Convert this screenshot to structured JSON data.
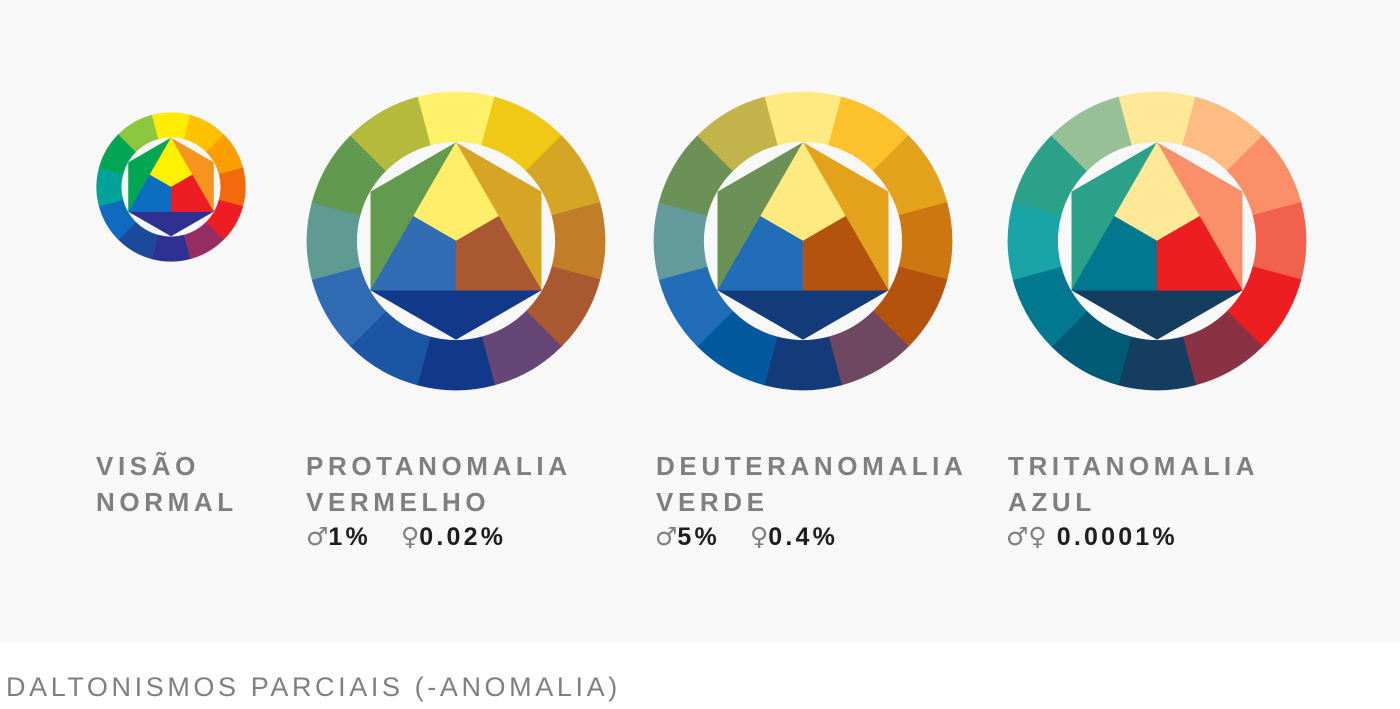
{
  "footer": {
    "title": "DALTONISMOS PARCIAIS (-ANOMALIA)"
  },
  "wheels": [
    {
      "id": "normal",
      "label_line1": "VISÃO",
      "label_line2": "NORMAL",
      "ring_colors": [
        "#ffec00",
        "#fec200",
        "#fb9f00",
        "#f26a0c",
        "#ee1c23",
        "#952d63",
        "#2e3192",
        "#1b4a9c",
        "#0d6bc0",
        "#00a398",
        "#00a651",
        "#8dc63f"
      ],
      "inner": {
        "top": "#fff100",
        "right": "#ee1c23",
        "left": "#0b6ec1",
        "outer_left": "#00a651",
        "outer_right": "#f7941d",
        "outer_bottom": "#2e3192"
      }
    },
    {
      "id": "protanomalia",
      "label_line1": "PROTANOMALIA",
      "label_line2": "VERMELHO",
      "male_symbol": "♂",
      "male_pct": "1%",
      "female_symbol": "♀",
      "female_pct": "0.02%",
      "ring_colors": [
        "#fff06a",
        "#f0c816",
        "#d5a526",
        "#c17d27",
        "#a95832",
        "#654676",
        "#12388a",
        "#1b55a3",
        "#306bb4",
        "#5f9a93",
        "#619a4e",
        "#b4ba3b"
      ],
      "inner": {
        "top": "#ffee6a",
        "right": "#a95832",
        "left": "#316cb4",
        "outer_left": "#629a4e",
        "outer_right": "#d6a526",
        "outer_bottom": "#12388a"
      }
    },
    {
      "id": "deuteranomalia",
      "label_line1": "DEUTERANOMALIA",
      "label_line2": "VERDE",
      "male_symbol": "♂",
      "male_pct": "5%",
      "female_symbol": "♀",
      "female_pct": "0.4%",
      "ring_colors": [
        "#ffea82",
        "#fcc12b",
        "#e4a11b",
        "#cc7711",
        "#b5530e",
        "#6e4761",
        "#133b7a",
        "#04589e",
        "#216db8",
        "#639a9b",
        "#6b9157",
        "#c2b44b"
      ],
      "inner": {
        "top": "#ffea82",
        "right": "#b5530e",
        "left": "#216db8",
        "outer_left": "#6b9157",
        "outer_right": "#e4a11b",
        "outer_bottom": "#133b7a"
      }
    },
    {
      "id": "tritanomalia",
      "label_line1": "TRITANOMALIA",
      "label_line2": "AZUL",
      "both_symbols": "♂♀",
      "both_pct": "0.0001%",
      "ring_colors": [
        "#ffe999",
        "#fdbc82",
        "#fb8f69",
        "#f2614d",
        "#ec1e22",
        "#8b3144",
        "#143d60",
        "#005a75",
        "#027790",
        "#19a5a8",
        "#2ca18a",
        "#98c097"
      ],
      "inner": {
        "top": "#ffe999",
        "right": "#ec1e22",
        "left": "#027790",
        "outer_left": "#2ca18a",
        "outer_right": "#fb8f69",
        "outer_bottom": "#143d60"
      }
    }
  ]
}
